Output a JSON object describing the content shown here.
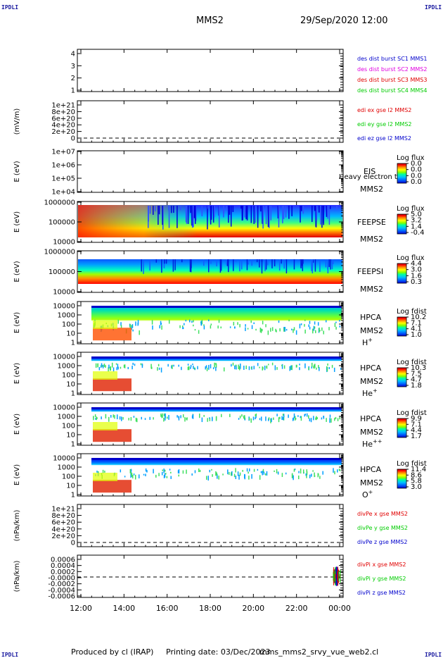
{
  "header": {
    "corner_tl": "IPDLI",
    "corner_tr": "IPDLI",
    "corner_bl": "IPDLI",
    "corner_br": "IPDLI",
    "spacecraft": "MMS2",
    "datetime": "29/Sep/2020 12:00"
  },
  "footer": {
    "produced_by": "Produced by cl (IRAP)",
    "printing_date": "Printing date: 03/Dec/2023",
    "filename": "mms_mms2_srvy_vue_web2.cl"
  },
  "colors": {
    "red": "#e00000",
    "magenta": "#e000e0",
    "green": "#00cc00",
    "blue": "#0000cc",
    "spectrogram_scale": [
      "#0000cc",
      "#0060ff",
      "#00c0ff",
      "#00ffa0",
      "#80ff00",
      "#ffff00",
      "#ff8000",
      "#ff0000",
      "#b00000"
    ]
  },
  "chart_data": {
    "type": "multi-panel time series / spectrogram stack",
    "x_axis": {
      "ticks": [
        "12:00",
        "14:00",
        "16:00",
        "18:00",
        "20:00",
        "22:00",
        "00:00"
      ],
      "range": [
        "12:00",
        "00:00"
      ]
    },
    "panels": [
      {
        "id": "des-dist",
        "type": "line",
        "yticks": [
          "1",
          "2",
          "3",
          "4"
        ],
        "legend": [
          {
            "label": "des dist burst SC1 MMS1",
            "color": "blue"
          },
          {
            "label": "des dist burst SC2 MMS2",
            "color": "magenta"
          },
          {
            "label": "des dist burst SC3 MMS3",
            "color": "red"
          },
          {
            "label": "des dist burst SC4 MMS4",
            "color": "green"
          }
        ]
      },
      {
        "id": "edi",
        "type": "line",
        "ylabel": "(mV/m)",
        "yticks": [
          "0",
          "2e+20",
          "4e+20",
          "6e+20",
          "8e+20",
          "1e+21"
        ],
        "zero_line": true,
        "legend": [
          {
            "label": "edi ex gse l2 MMS2",
            "color": "red"
          },
          {
            "label": "edi ey gse l2 MMS2",
            "color": "green"
          },
          {
            "label": "edi ez gse l2 MMS2",
            "color": "blue"
          }
        ]
      },
      {
        "id": "eis",
        "type": "heatmap",
        "ylabel": "E (eV)",
        "yticks": [
          "1e+04",
          "1e+05",
          "1e+06",
          "1e+07"
        ],
        "labels": [
          "EIS",
          "MMS2"
        ],
        "overlay_text": "Heavy electron to",
        "colorbar": {
          "title": "Log flux",
          "ticks": [
            "0.0",
            "0.0",
            "0.0",
            "0.0"
          ]
        }
      },
      {
        "id": "feeps-e",
        "type": "heatmap",
        "ylabel": "E (eV)",
        "yticks": [
          "10000",
          "100000",
          "1000000"
        ],
        "labels": [
          "FEEPSE",
          "MMS2"
        ],
        "colorbar": {
          "title": "Log flux",
          "ticks": [
            "5.0",
            "3.2",
            "1.4",
            "-0.4"
          ]
        }
      },
      {
        "id": "feeps-i",
        "type": "heatmap",
        "ylabel": "E (eV)",
        "yticks": [
          "10000",
          "100000",
          "1000000"
        ],
        "labels": [
          "FEEPSI",
          "MMS2"
        ],
        "colorbar": {
          "title": "Log flux",
          "ticks": [
            "4.4",
            "3.0",
            "1.6",
            "0.3"
          ]
        }
      },
      {
        "id": "hpca-h",
        "type": "heatmap",
        "ylabel": "E (eV)",
        "yticks": [
          "1",
          "10",
          "100",
          "1000",
          "10000"
        ],
        "labels": [
          "HPCA",
          "MMS2"
        ],
        "species": "H",
        "species_sup": "+",
        "colorbar": {
          "title": "Log fdist",
          "ticks": [
            "10.2",
            "7.1",
            "4.1",
            "1.0"
          ]
        }
      },
      {
        "id": "hpca-he",
        "type": "heatmap",
        "ylabel": "E (eV)",
        "yticks": [
          "1",
          "10",
          "100",
          "1000",
          "10000"
        ],
        "labels": [
          "HPCA",
          "MMS2"
        ],
        "species": "He",
        "species_sup": "+",
        "colorbar": {
          "title": "Log fdist",
          "ticks": [
            "10.3",
            "7.5",
            "4.7",
            "1.8"
          ]
        }
      },
      {
        "id": "hpca-he2",
        "type": "heatmap",
        "ylabel": "E (eV)",
        "yticks": [
          "1",
          "10",
          "100",
          "1000",
          "10000"
        ],
        "labels": [
          "HPCA",
          "MMS2"
        ],
        "species": "He",
        "species_sup": "++",
        "colorbar": {
          "title": "Log fdist",
          "ticks": [
            "9.9",
            "7.1",
            "4.4",
            "1.7"
          ]
        }
      },
      {
        "id": "hpca-o",
        "type": "heatmap",
        "ylabel": "E (eV)",
        "yticks": [
          "1",
          "10",
          "100",
          "1000",
          "10000"
        ],
        "labels": [
          "HPCA",
          "MMS2"
        ],
        "species": "O",
        "species_sup": "+",
        "colorbar": {
          "title": "Log fdist",
          "ticks": [
            "11.4",
            "8.6",
            "5.8",
            "3.0"
          ]
        }
      },
      {
        "id": "divpe",
        "type": "line",
        "ylabel": "(nPa/km)",
        "yticks": [
          "0",
          "2e+20",
          "4e+20",
          "6e+20",
          "8e+20",
          "1e+21"
        ],
        "zero_line": true,
        "legend": [
          {
            "label": "divPe x gse MMS2",
            "color": "red"
          },
          {
            "label": "divPe y gse MMS2",
            "color": "green"
          },
          {
            "label": "divPe z gse MMS2",
            "color": "blue"
          }
        ]
      },
      {
        "id": "divpi",
        "type": "line",
        "ylabel": "(nPa/km)",
        "yticks": [
          "-0.0006",
          "-0.0004",
          "-0.0002",
          "-0.0000",
          "0.0002",
          "0.0004",
          "0.0006"
        ],
        "zero_line": true,
        "legend": [
          {
            "label": "divPi x gse MMS2",
            "color": "red"
          },
          {
            "label": "divPi y gse MMS2",
            "color": "green"
          },
          {
            "label": "divPi z gse MMS2",
            "color": "blue"
          }
        ]
      }
    ]
  }
}
